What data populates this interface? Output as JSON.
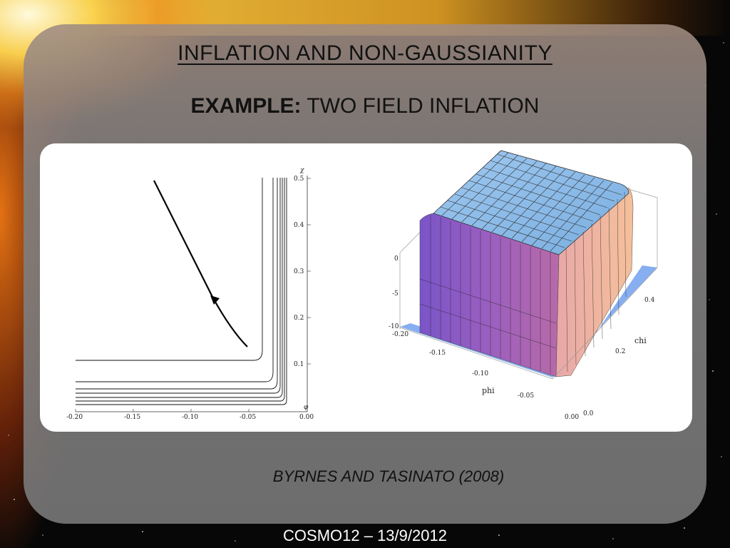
{
  "slide": {
    "title": "INFLATION AND NON-GAUSSIANITY",
    "subtitle_bold": "EXAMPLE:",
    "subtitle_rest": " TWO FIELD INFLATION",
    "caption": "BYRNES AND TASINATO (2008)",
    "footer": "COSMO12 – 13/9/2012"
  },
  "figure_left": {
    "x_axis_symbol": "φ",
    "y_axis_symbol": "χ",
    "x_ticks": [
      "-0.20",
      "-0.15",
      "-0.10",
      "-0.05",
      "0.00"
    ],
    "y_ticks": [
      "0.1",
      "0.2",
      "0.3",
      "0.4",
      "0.5"
    ],
    "trajectory_description_start": [
      -0.133,
      0.5
    ],
    "trajectory_description_end": [
      -0.052,
      0.133
    ]
  },
  "figure_right": {
    "x_label": "phi",
    "y_label": "chi",
    "z_ticks": [
      "0",
      "-5",
      "-10"
    ],
    "phi_ticks": [
      "-0.20",
      "-0.15",
      "-0.10",
      "-0.05",
      "0.00"
    ],
    "chi_ticks": [
      "0.4",
      "0.2",
      "0.0"
    ],
    "colors": {
      "top": "#8db8e6",
      "side_left": "#7a55c8",
      "side_right": "#f2b49a",
      "floor": "#86aef0"
    }
  }
}
